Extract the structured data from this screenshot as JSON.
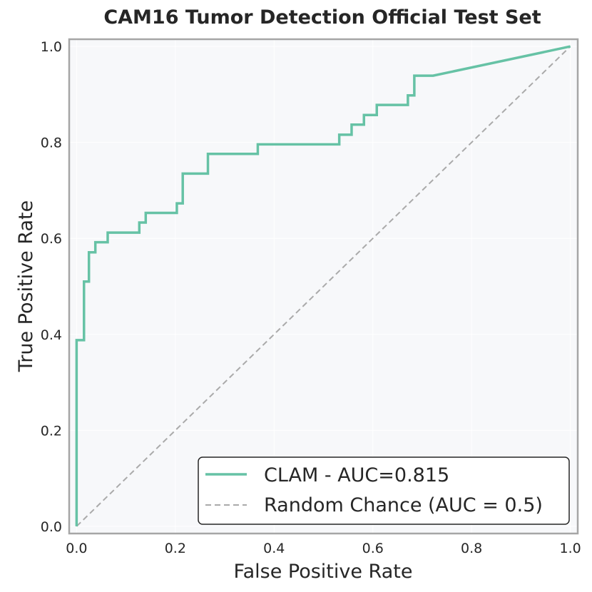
{
  "chart_data": {
    "type": "line",
    "title": "CAM16 Tumor Detection Official Test Set",
    "xlabel": "False Positive Rate",
    "ylabel": "True Positive Rate",
    "xlim": [
      -0.015,
      1.015
    ],
    "ylim": [
      -0.015,
      1.015
    ],
    "xticks": [
      0.0,
      0.2,
      0.4,
      0.6,
      0.8,
      1.0
    ],
    "yticks": [
      0.0,
      0.2,
      0.4,
      0.6,
      0.8,
      1.0
    ],
    "xtick_labels": [
      "0.0",
      "0.2",
      "0.4",
      "0.6",
      "0.8",
      "1.0"
    ],
    "ytick_labels": [
      "0.0",
      "0.2",
      "0.4",
      "0.6",
      "0.8",
      "1.0"
    ],
    "grid": true,
    "legend_position": "bottom-right",
    "series": [
      {
        "name": "CLAM - AUC=0.815",
        "style": "solid",
        "color": "#66c2a5",
        "x": [
          0.0,
          0.0,
          0.015,
          0.015,
          0.025,
          0.025,
          0.038,
          0.038,
          0.063,
          0.063,
          0.127,
          0.127,
          0.14,
          0.14,
          0.203,
          0.203,
          0.215,
          0.215,
          0.266,
          0.266,
          0.367,
          0.367,
          0.532,
          0.532,
          0.557,
          0.557,
          0.582,
          0.582,
          0.608,
          0.608,
          0.671,
          0.671,
          0.684,
          0.684,
          0.722,
          1.0
        ],
        "y": [
          0.0,
          0.388,
          0.388,
          0.51,
          0.51,
          0.571,
          0.571,
          0.592,
          0.592,
          0.612,
          0.612,
          0.633,
          0.633,
          0.653,
          0.653,
          0.673,
          0.673,
          0.735,
          0.735,
          0.776,
          0.776,
          0.796,
          0.796,
          0.816,
          0.816,
          0.837,
          0.837,
          0.857,
          0.857,
          0.878,
          0.878,
          0.898,
          0.898,
          0.939,
          0.939,
          1.0
        ]
      },
      {
        "name": "Random Chance (AUC = 0.5)",
        "style": "dashed",
        "color": "#aaaaaa",
        "x": [
          0.0,
          1.0
        ],
        "y": [
          0.0,
          1.0
        ]
      }
    ]
  },
  "colors": {
    "plot_background": "#f7f8fa",
    "frame": "#a6a6a6",
    "grid": "#ffffff"
  }
}
